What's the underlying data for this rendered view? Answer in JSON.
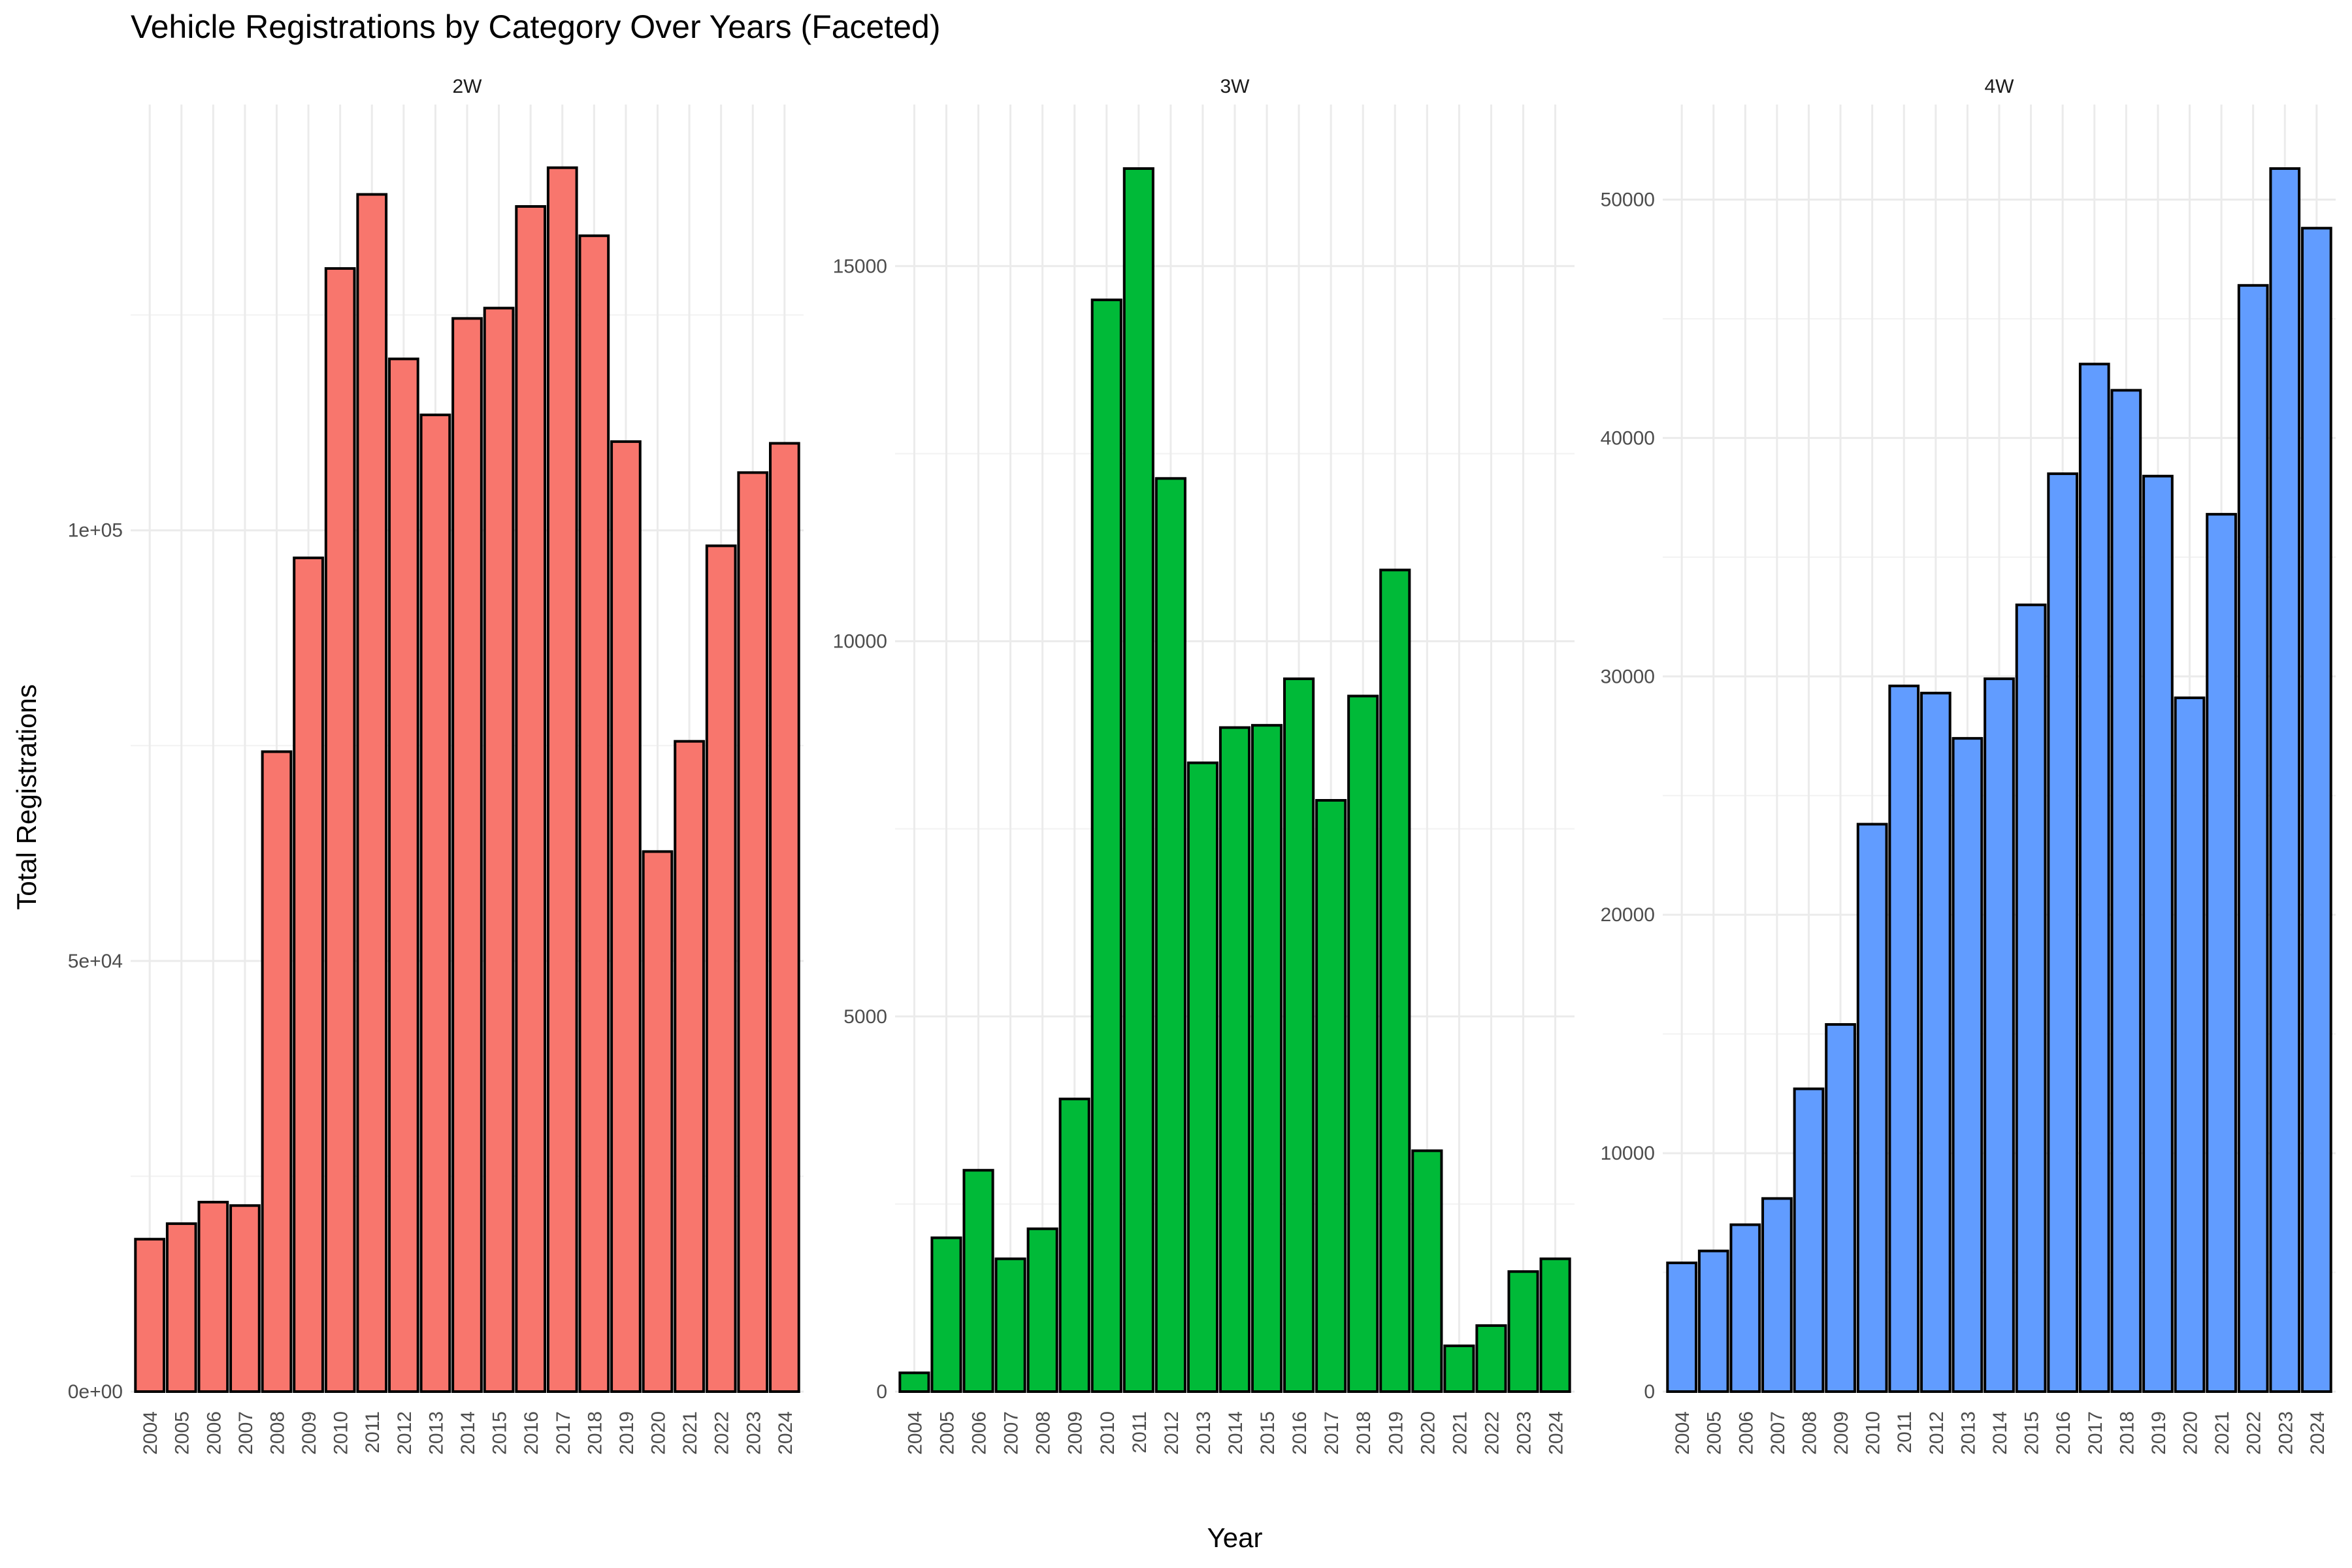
{
  "chart_data": {
    "type": "bar",
    "title": "Vehicle Registrations by Category Over Years (Faceted)",
    "xlabel": "Year",
    "ylabel": "Total Registrations",
    "grid": true,
    "legend": "none",
    "categories": [
      "2004",
      "2005",
      "2006",
      "2007",
      "2008",
      "2009",
      "2010",
      "2011",
      "2012",
      "2013",
      "2014",
      "2015",
      "2016",
      "2017",
      "2018",
      "2019",
      "2020",
      "2021",
      "2022",
      "2023",
      "2024"
    ],
    "facets": [
      {
        "name": "2W",
        "color": "#F8766D",
        "ylim": [
          0,
          142000
        ],
        "ytick_values": [
          0,
          50000,
          100000
        ],
        "ytick_labels": [
          "0e+00",
          "5e+04",
          "1e+05"
        ],
        "values": [
          17700,
          19500,
          22000,
          21600,
          74300,
          96800,
          130400,
          139000,
          119900,
          113400,
          124600,
          125800,
          137600,
          142100,
          134200,
          110300,
          62700,
          75500,
          98200,
          106700,
          110100
        ]
      },
      {
        "name": "3W",
        "color": "#00BA38",
        "ylim": [
          0,
          16300
        ],
        "ytick_values": [
          0,
          5000,
          10000,
          15000
        ],
        "ytick_labels": [
          "0",
          "5000",
          "10000",
          "15000"
        ],
        "values": [
          250,
          2050,
          2950,
          1770,
          2170,
          3900,
          14550,
          16300,
          12170,
          8380,
          8850,
          8880,
          9500,
          7880,
          9270,
          10950,
          3210,
          610,
          880,
          1600,
          1770
        ]
      },
      {
        "name": "4W",
        "color": "#619CFF",
        "ylim": [
          0,
          51300
        ],
        "ytick_values": [
          0,
          10000,
          20000,
          30000,
          40000,
          50000
        ],
        "ytick_labels": [
          "0",
          "10000",
          "20000",
          "30000",
          "40000",
          "50000"
        ],
        "values": [
          5400,
          5900,
          7000,
          8100,
          12700,
          15400,
          23800,
          29600,
          29300,
          27400,
          29900,
          33000,
          38500,
          43100,
          42000,
          38400,
          29100,
          36800,
          46400,
          51300,
          48800
        ]
      }
    ]
  }
}
